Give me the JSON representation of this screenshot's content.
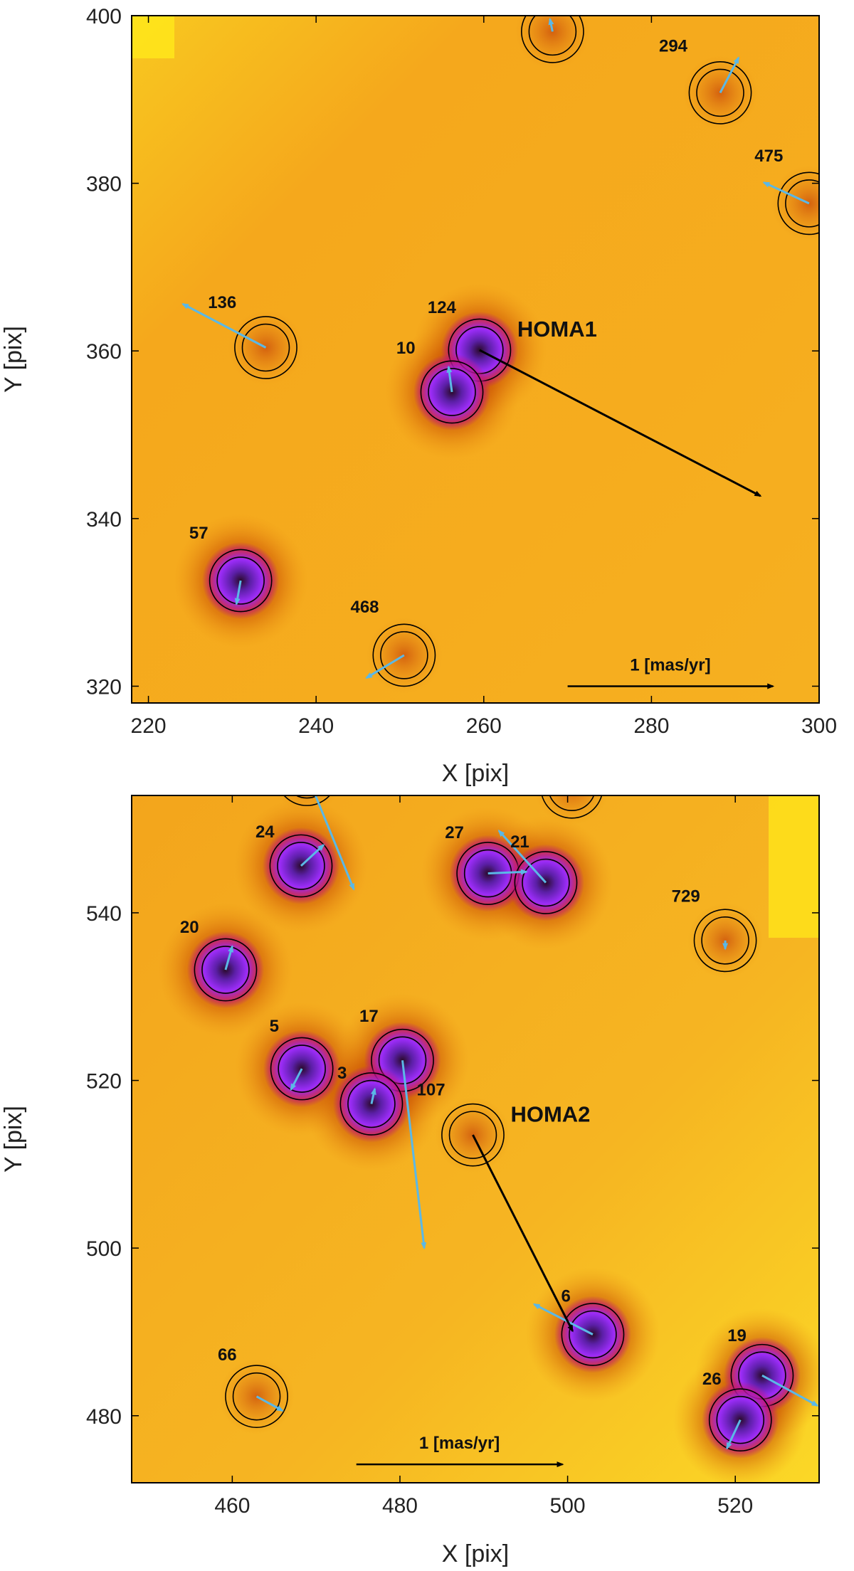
{
  "colors": {
    "background": "#f6ae1c",
    "dark_halo": "#a82600",
    "bright_star": "#9b2cf7",
    "core": "#2a0a2a",
    "ring": "#000000",
    "star_arrow": "#5bb8e6",
    "target_arrow": "#000000",
    "bright_corner": "#ffe81a"
  },
  "chart_data": [
    {
      "type": "scatter",
      "title": "",
      "xlabel": "X [pix]",
      "ylabel": "Y [pix]",
      "xlim": [
        218,
        300
      ],
      "ylim": [
        318,
        400
      ],
      "xticks": [
        220,
        240,
        260,
        280,
        300
      ],
      "yticks": [
        320,
        340,
        360,
        380,
        400
      ],
      "target": {
        "name": "HOMA1",
        "x": 259.5,
        "y": 360.1,
        "dx": 33.5,
        "dy": -17.4
      },
      "scale_bar": {
        "label": "1 [mas/yr]",
        "x": 270,
        "y": 320,
        "dx": 24.5,
        "dy": 0
      },
      "stars": [
        {
          "id": "124",
          "x": 259.5,
          "y": 360.1,
          "dx": 0,
          "dy": 0,
          "bright": true,
          "label_dx": -4.5,
          "label_dy": 4.4
        },
        {
          "id": "10",
          "x": 256.2,
          "y": 355.1,
          "dx": -0.4,
          "dy": 3.0,
          "bright": true,
          "label_dx": -5.5,
          "label_dy": 4.6
        },
        {
          "id": "136",
          "x": 234.0,
          "y": 360.4,
          "dx": -9.9,
          "dy": 5.2,
          "bright": false,
          "label_dx": -5.2,
          "label_dy": 4.7
        },
        {
          "id": "57",
          "x": 231.0,
          "y": 332.6,
          "dx": -0.5,
          "dy": -2.8,
          "bright": true,
          "label_dx": -5.0,
          "label_dy": 5.0
        },
        {
          "id": "468",
          "x": 250.5,
          "y": 323.7,
          "dx": -4.5,
          "dy": -2.7,
          "bright": false,
          "label_dx": -4.7,
          "label_dy": 5.1
        },
        {
          "id": "294",
          "x": 288.2,
          "y": 390.8,
          "dx": 2.2,
          "dy": 4.2,
          "bright": false,
          "label_dx": -5.6,
          "label_dy": 4.9
        },
        {
          "id": "475",
          "x": 298.8,
          "y": 377.6,
          "dx": -5.4,
          "dy": 2.5,
          "bright": false,
          "label_dx": -4.8,
          "label_dy": 5.0
        },
        {
          "id": "",
          "x": 268.2,
          "y": 398.1,
          "dx": -0.3,
          "dy": 1.5,
          "bright": false,
          "label_dx": 0,
          "label_dy": 0
        }
      ]
    },
    {
      "type": "scatter",
      "title": "",
      "xlabel": "X [pix]",
      "ylabel": "Y [pix]",
      "xlim": [
        448,
        530
      ],
      "ylim": [
        472,
        554
      ],
      "xticks": [
        460,
        480,
        500,
        520
      ],
      "yticks": [
        480,
        500,
        520,
        540
      ],
      "target": {
        "name": "HOMA2",
        "x": 488.7,
        "y": 513.5,
        "dx": 11.9,
        "dy": -23.4
      },
      "scale_bar": {
        "label": "1 [mas/yr]",
        "x": 474.8,
        "y": 474.2,
        "dx": 24.6,
        "dy": 0
      },
      "stars": [
        {
          "id": "107",
          "x": 488.7,
          "y": 513.5,
          "dx": 0,
          "dy": 0,
          "bright": false,
          "label_dx": -5.0,
          "label_dy": 4.7
        },
        {
          "id": "24",
          "x": 468.2,
          "y": 545.6,
          "dx": 2.7,
          "dy": 2.5,
          "bright": true,
          "label_dx": -4.3,
          "label_dy": 3.4
        },
        {
          "id": "",
          "x": 468.9,
          "y": 556.5,
          "dx": 5.6,
          "dy": -13.7,
          "bright": false,
          "label_dx": 0,
          "label_dy": 0
        },
        {
          "id": "27",
          "x": 490.5,
          "y": 544.7,
          "dx": 4.6,
          "dy": 0.2,
          "bright": true,
          "label_dx": -4.0,
          "label_dy": 4.2
        },
        {
          "id": "21",
          "x": 497.4,
          "y": 543.6,
          "dx": -5.6,
          "dy": 6.2,
          "bright": true,
          "label_dx": -3.1,
          "label_dy": 4.2
        },
        {
          "id": "729",
          "x": 518.8,
          "y": 536.7,
          "dx": 0,
          "dy": -1.0,
          "bright": false,
          "label_dx": -4.7,
          "label_dy": 4.6
        },
        {
          "id": "20",
          "x": 459.2,
          "y": 533.2,
          "dx": 0.8,
          "dy": 2.8,
          "bright": true,
          "label_dx": -4.3,
          "label_dy": 4.4
        },
        {
          "id": "5",
          "x": 468.3,
          "y": 521.4,
          "dx": -1.3,
          "dy": -2.5,
          "bright": true,
          "label_dx": -3.3,
          "label_dy": 4.4
        },
        {
          "id": "17",
          "x": 480.3,
          "y": 522.4,
          "dx": 2.6,
          "dy": -22.4,
          "bright": true,
          "label_dx": -4.0,
          "label_dy": 4.6
        },
        {
          "id": "3",
          "x": 476.6,
          "y": 517.2,
          "dx": 0.4,
          "dy": 1.8,
          "bright": true,
          "label_dx": -3.5,
          "label_dy": 3.0
        },
        {
          "id": "6",
          "x": 503.0,
          "y": 489.7,
          "dx": -7.0,
          "dy": 3.6,
          "bright": true,
          "label_dx": -3.2,
          "label_dy": 3.9
        },
        {
          "id": "19",
          "x": 523.2,
          "y": 484.8,
          "dx": 6.6,
          "dy": -3.6,
          "bright": true,
          "label_dx": -3.0,
          "label_dy": 4.1
        },
        {
          "id": "26",
          "x": 520.6,
          "y": 479.5,
          "dx": -1.6,
          "dy": -3.4,
          "bright": true,
          "label_dx": -3.4,
          "label_dy": 4.2
        },
        {
          "id": "66",
          "x": 462.9,
          "y": 482.3,
          "dx": 3.1,
          "dy": -1.7,
          "bright": false,
          "label_dx": -3.5,
          "label_dy": 4.3
        },
        {
          "id": "",
          "x": 500.5,
          "y": 555.0,
          "dx": -0.1,
          "dy": -0.8,
          "bright": false,
          "label_dx": 0,
          "label_dy": 0
        }
      ]
    }
  ]
}
